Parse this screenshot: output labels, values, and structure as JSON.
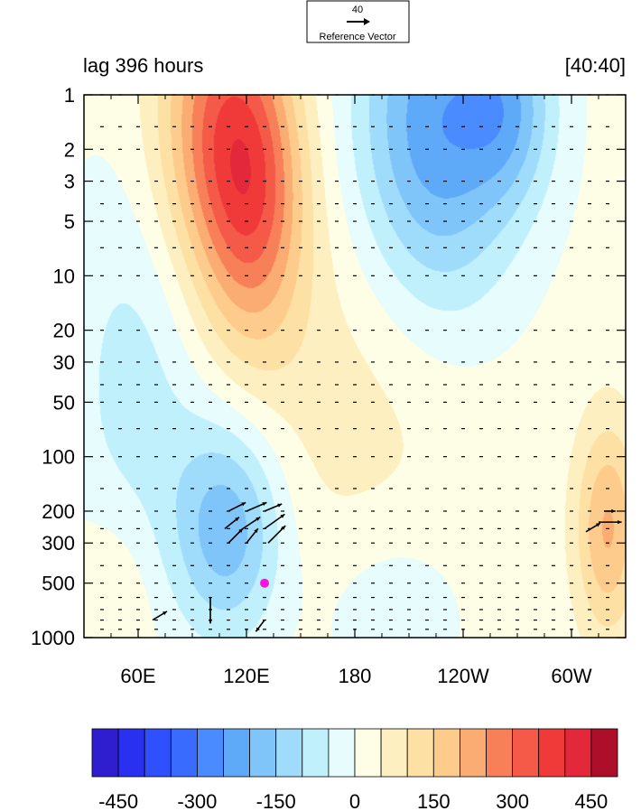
{
  "chart_data": {
    "type": "heatmap",
    "title_left": "lag 396 hours",
    "title_right": "[40:40]",
    "reference_vector": {
      "magnitude": "40",
      "label": "Reference Vector"
    },
    "x_ticks": [
      "60E",
      "120E",
      "180",
      "120W",
      "60W"
    ],
    "x_tick_values": [
      60,
      120,
      180,
      240,
      300
    ],
    "xlim": [
      30,
      330
    ],
    "y_ticks": [
      "1",
      "2",
      "3",
      "5",
      "10",
      "20",
      "30",
      "50",
      "100",
      "200",
      "300",
      "500",
      "1000"
    ],
    "y_tick_values": [
      1,
      2,
      3,
      5,
      10,
      20,
      30,
      50,
      100,
      200,
      300,
      500,
      1000
    ],
    "ylim": [
      1,
      1000
    ],
    "y_scale": "log",
    "y_inverted": true,
    "colorbar": {
      "levels": [
        -500,
        -450,
        -400,
        -350,
        -300,
        -250,
        -200,
        -150,
        -100,
        -50,
        0,
        50,
        100,
        150,
        200,
        250,
        300,
        350,
        400,
        450,
        500
      ],
      "colors": [
        "#2f1dd0",
        "#2a30f0",
        "#2f50ff",
        "#3a6bff",
        "#4a8bff",
        "#5eaaf8",
        "#80c5fa",
        "#9fdcfb",
        "#bff0fb",
        "#e6fcfd",
        "#fefee6",
        "#fdefc0",
        "#fde0a4",
        "#fdcc8c",
        "#fbac72",
        "#f88058",
        "#f55a48",
        "#f03a3a",
        "#e2283a",
        "#ad0f2b"
      ],
      "tick_labels": [
        "-450",
        "-300",
        "-150",
        "0",
        "150",
        "300",
        "450"
      ],
      "tick_values": [
        -450,
        -300,
        -150,
        0,
        150,
        300,
        450
      ]
    },
    "marker": {
      "lon": 130,
      "pressure": 500,
      "color": "#ff11dd"
    },
    "field_centers": [
      {
        "lon": 105,
        "p": 1.5,
        "value": 260,
        "sx": 35,
        "sy": 0.9
      },
      {
        "lon": 125,
        "p": 4,
        "value": 200,
        "sx": 28,
        "sy": 0.8
      },
      {
        "lon": 225,
        "p": 1.6,
        "value": -260,
        "sx": 45,
        "sy": 1.0
      },
      {
        "lon": 265,
        "p": 1.2,
        "value": -140,
        "sx": 25,
        "sy": 0.5
      },
      {
        "lon": 110,
        "p": 250,
        "value": -200,
        "sx": 30,
        "sy": 0.6
      },
      {
        "lon": 60,
        "p": 40,
        "value": -90,
        "sx": 40,
        "sy": 1.2
      },
      {
        "lon": 320,
        "p": 250,
        "value": 190,
        "sx": 18,
        "sy": 0.6
      },
      {
        "lon": 200,
        "p": 700,
        "value": -60,
        "sx": 40,
        "sy": 0.5
      },
      {
        "lon": 45,
        "p": 600,
        "value": 60,
        "sx": 25,
        "sy": 0.5
      },
      {
        "lon": 180,
        "p": 40,
        "value": 60,
        "sx": 70,
        "sy": 1.2
      }
    ],
    "vectors": [
      {
        "lon": 110,
        "p": 200,
        "u": 12,
        "v": 6
      },
      {
        "lon": 120,
        "p": 200,
        "u": 14,
        "v": 6
      },
      {
        "lon": 130,
        "p": 200,
        "u": 12,
        "v": 5
      },
      {
        "lon": 108,
        "p": 250,
        "u": 10,
        "v": 8
      },
      {
        "lon": 118,
        "p": 250,
        "u": 12,
        "v": 8
      },
      {
        "lon": 130,
        "p": 250,
        "u": 14,
        "v": 10
      },
      {
        "lon": 110,
        "p": 300,
        "u": 10,
        "v": 10
      },
      {
        "lon": 120,
        "p": 300,
        "u": 8,
        "v": 10
      },
      {
        "lon": 132,
        "p": 300,
        "u": 12,
        "v": 12
      },
      {
        "lon": 100,
        "p": 600,
        "u": 0,
        "v": -18
      },
      {
        "lon": 130,
        "p": 800,
        "u": -6,
        "v": -8
      },
      {
        "lon": 68,
        "p": 800,
        "u": 10,
        "v": 6
      },
      {
        "lon": 315,
        "p": 230,
        "u": 16,
        "v": 0
      },
      {
        "lon": 308,
        "p": 260,
        "u": 10,
        "v": 6
      },
      {
        "lon": 318,
        "p": 200,
        "u": 8,
        "v": 0
      }
    ]
  }
}
